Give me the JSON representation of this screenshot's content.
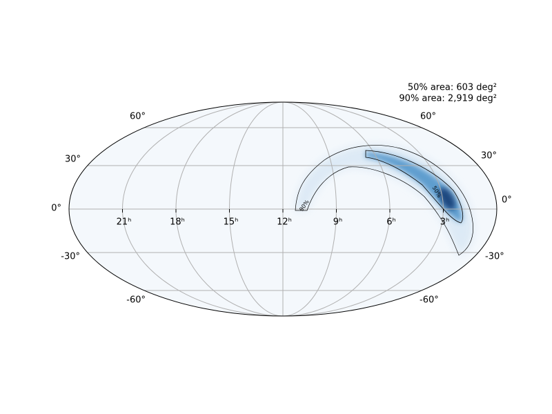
{
  "map": {
    "annotations": [
      "50% area: 603 deg²",
      "90% area: 2,919 deg²"
    ],
    "ra_labels": [
      "21ʰ",
      "18ʰ",
      "15ʰ",
      "12ʰ",
      "9ʰ",
      "6ʰ",
      "3ʰ"
    ],
    "dec_labels_left": [
      "60°",
      "30°",
      "0°",
      "-30°",
      "-60°"
    ],
    "dec_labels_right": [
      "60°",
      "30°",
      "0°",
      "-30°",
      "-60°"
    ],
    "contour_labels": [
      "90%",
      "50%"
    ]
  }
}
